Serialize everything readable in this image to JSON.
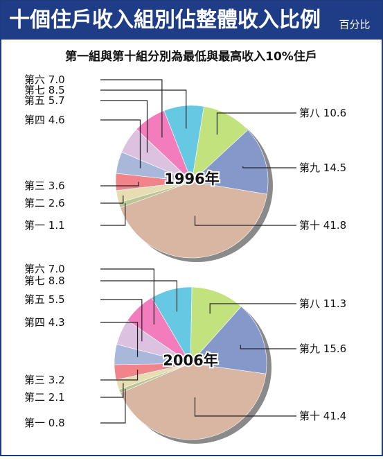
{
  "header": {
    "title": "十個住戶收入組別佔整體收入比例",
    "unit": "百分比"
  },
  "subtitle": "第一組與第十組分別為最低與最高收入10%住戶",
  "chart_data": [
    {
      "type": "pie",
      "title": "1996年",
      "categories": [
        "第一",
        "第二",
        "第三",
        "第四",
        "第五",
        "第六",
        "第七",
        "第八",
        "第九",
        "第十"
      ],
      "values": [
        1.1,
        2.6,
        3.6,
        4.6,
        5.7,
        7,
        8.5,
        10.6,
        14.5,
        41.8
      ],
      "value_labels": [
        "1.1",
        "2.6",
        "3.6",
        "4.6",
        "5.7",
        "7.0",
        "8.5",
        "10.6",
        "14.5",
        "41.8"
      ],
      "colors": [
        "#bcc596",
        "#e6ddb2",
        "#f0848a",
        "#a9b8da",
        "#dcc2e0",
        "#f27cbc",
        "#66c8e2",
        "#c2e27e",
        "#8499c9",
        "#d8b6a2"
      ]
    },
    {
      "type": "pie",
      "title": "2006年",
      "categories": [
        "第一",
        "第二",
        "第三",
        "第四",
        "第五",
        "第六",
        "第七",
        "第八",
        "第九",
        "第十"
      ],
      "values": [
        0.8,
        2.1,
        3.2,
        4.3,
        5.5,
        7,
        8.8,
        11.3,
        15.6,
        41.4
      ],
      "value_labels": [
        "0.8",
        "2.1",
        "3.2",
        "4.3",
        "5.5",
        "7.0",
        "8.8",
        "11.3",
        "15.6",
        "41.4"
      ],
      "colors": [
        "#bcc596",
        "#e6ddb2",
        "#f0848a",
        "#a9b8da",
        "#dcc2e0",
        "#f27cbc",
        "#66c8e2",
        "#c2e27e",
        "#8499c9",
        "#d8b6a2"
      ]
    }
  ]
}
